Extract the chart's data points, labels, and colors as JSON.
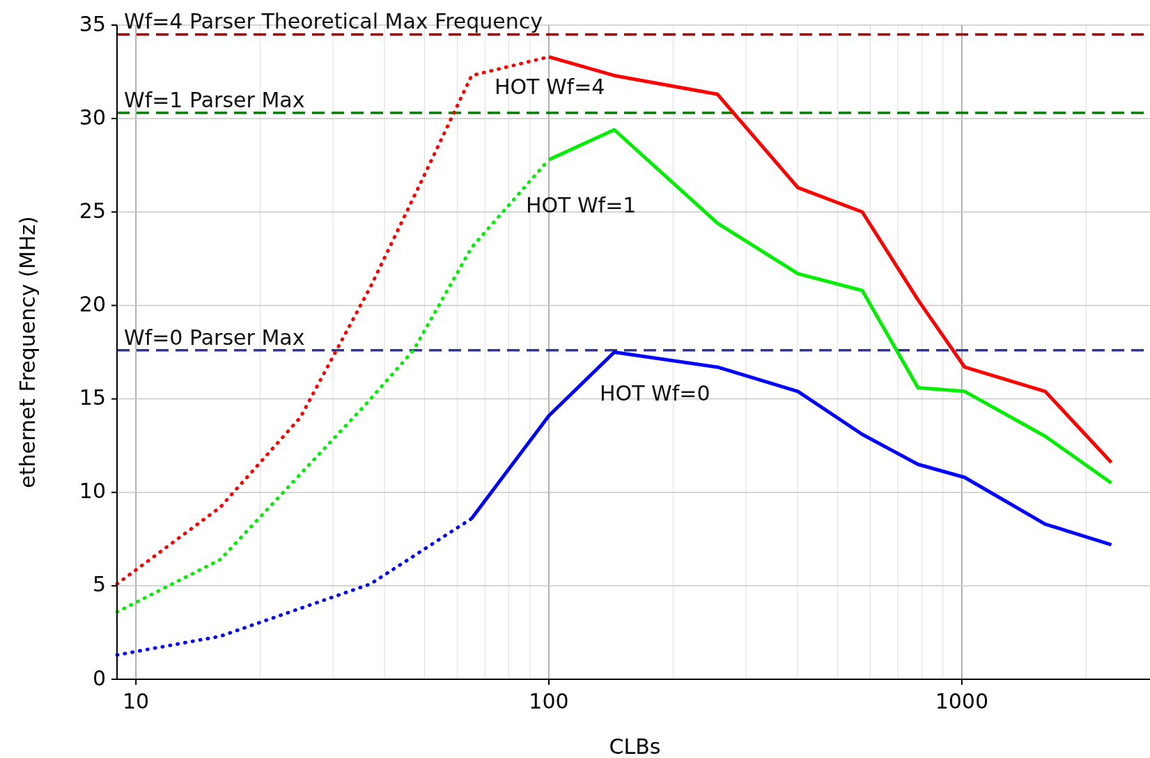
{
  "chart_data": {
    "type": "line",
    "xlabel": "CLBs",
    "ylabel": "ethernet Frequency (MHz)",
    "log": "x",
    "xlim": [
      9,
      2900
    ],
    "xticks": [
      10,
      100,
      1000
    ],
    "ylim": [
      0,
      35
    ],
    "yticks": [
      0,
      5,
      10,
      15,
      20,
      25,
      30,
      35
    ],
    "grid": true,
    "marker": "none",
    "series": [
      {
        "color": "#ff0000",
        "line_style": "dotted",
        "x": [
          9,
          16,
          25,
          37,
          50,
          65,
          100
        ],
        "values": [
          5.1,
          9.2,
          14,
          21,
          27,
          32.3,
          33.3
        ]
      },
      {
        "name": "HOT Wf=4",
        "color": "#ff0000",
        "line_style": "solid",
        "x": [
          100,
          144,
          256,
          401,
          574,
          783,
          1016,
          1592,
          2301
        ],
        "values": [
          33.3,
          32.3,
          31.3,
          26.3,
          25.0,
          20.3,
          16.7,
          15.4,
          11.6
        ]
      },
      {
        "color": "#00ee00",
        "line_style": "dotted",
        "x": [
          9,
          16,
          36,
          47,
          65,
          100
        ],
        "values": [
          3.6,
          6.4,
          14.7,
          17.6,
          23.1,
          27.8
        ]
      },
      {
        "name": "HOT Wf=1",
        "color": "#00ee00",
        "line_style": "solid",
        "x": [
          100,
          144,
          256,
          401,
          574,
          783,
          1016,
          1592,
          2301
        ],
        "values": [
          27.8,
          29.4,
          24.4,
          21.7,
          20.8,
          15.6,
          15.4,
          13.0,
          10.5
        ]
      },
      {
        "color": "#0000ff",
        "line_style": "dotted",
        "x": [
          9,
          16,
          37,
          65
        ],
        "values": [
          1.3,
          2.3,
          5.1,
          8.6
        ]
      },
      {
        "name": "HOT Wf=0",
        "color": "#0000ff",
        "line_style": "solid",
        "x": [
          65,
          100,
          144,
          256,
          401,
          574,
          783,
          1016,
          1592,
          2301
        ],
        "values": [
          8.6,
          14.1,
          17.5,
          16.7,
          15.4,
          13.1,
          11.5,
          10.8,
          8.3,
          7.2
        ]
      }
    ],
    "ref_lines": [
      {
        "axis": "y",
        "value": 34.5,
        "color": "#8b0000",
        "line_style": "dashed"
      },
      {
        "axis": "y",
        "value": 30.3,
        "color": "#008000",
        "line_style": "dashed"
      },
      {
        "axis": "y",
        "value": 17.6,
        "color": "#333399",
        "line_style": "dashed"
      }
    ],
    "annotations": [
      {
        "text": "Wf=4 Parser Theoretical Max Frequency",
        "y": 34.5
      },
      {
        "text": "Wf=1 Parser Max",
        "y": 30.3
      },
      {
        "text": "Wf=0 Parser Max",
        "y": 17.6
      }
    ]
  }
}
